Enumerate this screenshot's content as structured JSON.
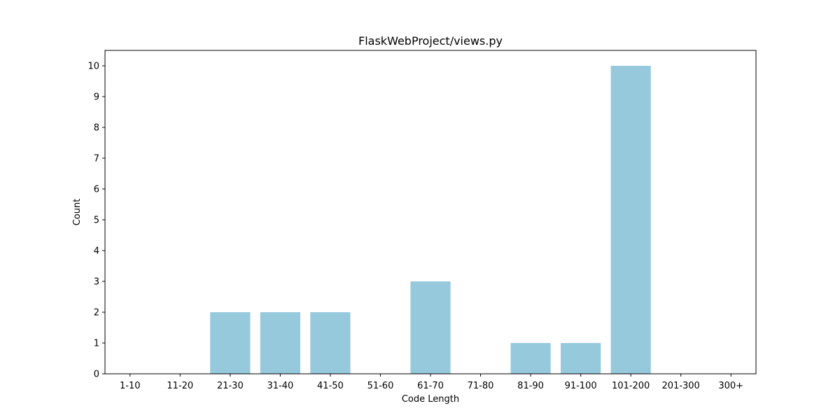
{
  "chart_data": {
    "type": "bar",
    "title": "FlaskWebProject/views.py",
    "xlabel": "Code Length",
    "ylabel": "Count",
    "categories": [
      "1-10",
      "11-20",
      "21-30",
      "31-40",
      "41-50",
      "51-60",
      "61-70",
      "71-80",
      "81-90",
      "91-100",
      "101-200",
      "201-300",
      "300+"
    ],
    "values": [
      0,
      0,
      2,
      2,
      2,
      0,
      3,
      0,
      1,
      1,
      10,
      0,
      0
    ],
    "yticks": [
      "0",
      "1",
      "2",
      "3",
      "4",
      "5",
      "6",
      "7",
      "8",
      "9",
      "10"
    ],
    "ylim": [
      0,
      10.5
    ],
    "grid": false,
    "colors": {
      "bar": "#96c9dc",
      "axes": "#000000",
      "background": "#ffffff"
    }
  }
}
